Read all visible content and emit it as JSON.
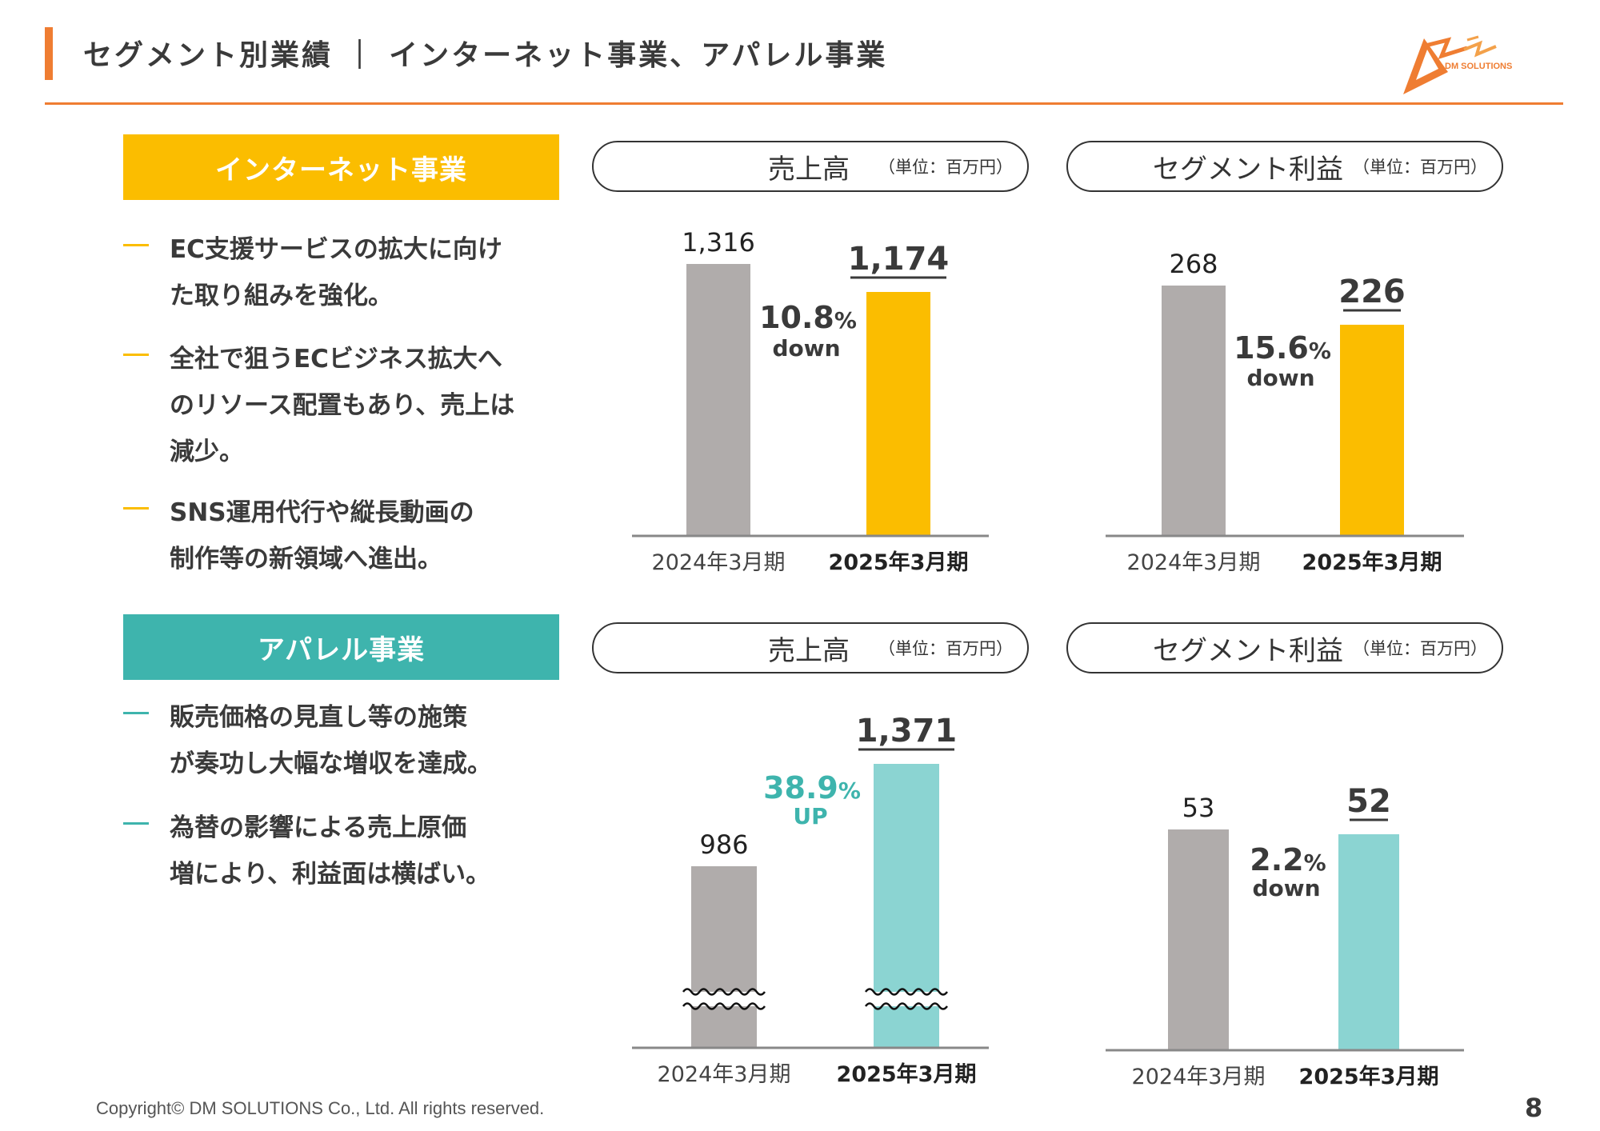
{
  "header": {
    "title": "セグメント別業績 ｜ インターネット事業、アパレル事業",
    "logo_text": "DM SOLUTIONS"
  },
  "segments": {
    "internet": {
      "label": "インターネット事業",
      "bullets": [
        [
          "EC支援サービスの拡大に向け",
          "た取り組みを強化。"
        ],
        [
          "全社で狙うECビジネス拡大へ",
          "のリソース配置もあり、売上は",
          "減少。"
        ],
        [
          "SNS運用代行や縦長動画の",
          "制作等の新領域へ進出。"
        ]
      ]
    },
    "apparel": {
      "label": "アパレル事業",
      "bullets": [
        [
          "販売価格の見直し等の施策",
          "が奏功し大幅な増収を達成。"
        ],
        [
          "為替の影響による売上原価",
          "増により、利益面は横ばい。"
        ]
      ]
    }
  },
  "chart_data": [
    {
      "type": "bar",
      "title": "売上高",
      "unit": "（単位：百万円）",
      "categories": [
        "2024年3月期",
        "2025年3月期"
      ],
      "values": [
        1316,
        1174
      ],
      "value_labels": [
        "1,316",
        "1,174"
      ],
      "change": {
        "value": "10.8",
        "pct": "%",
        "word": "down"
      },
      "colors": [
        "#b0acab",
        "#fbbd00"
      ],
      "segment": "インターネット事業"
    },
    {
      "type": "bar",
      "title": "セグメント利益",
      "unit": "（単位：百万円）",
      "categories": [
        "2024年3月期",
        "2025年3月期"
      ],
      "values": [
        268,
        226
      ],
      "value_labels": [
        "268",
        "226"
      ],
      "change": {
        "value": "15.6",
        "pct": "%",
        "word": "down"
      },
      "colors": [
        "#b0acab",
        "#fbbd00"
      ],
      "segment": "インターネット事業"
    },
    {
      "type": "bar",
      "title": "売上高",
      "unit": "（単位：百万円）",
      "categories": [
        "2024年3月期",
        "2025年3月期"
      ],
      "values": [
        986,
        1371
      ],
      "value_labels": [
        "986",
        "1,371"
      ],
      "change": {
        "value": "38.9",
        "pct": "%",
        "word": "UP"
      },
      "colors": [
        "#b0acab",
        "#8bd4d2"
      ],
      "axis_break": true,
      "segment": "アパレル事業"
    },
    {
      "type": "bar",
      "title": "セグメント利益",
      "unit": "（単位：百万円）",
      "categories": [
        "2024年3月期",
        "2025年3月期"
      ],
      "values": [
        53,
        52
      ],
      "value_labels": [
        "53",
        "52"
      ],
      "change": {
        "value": "2.2",
        "pct": "%",
        "word": "down"
      },
      "colors": [
        "#b0acab",
        "#8bd4d2"
      ],
      "segment": "アパレル事業"
    }
  ],
  "footer": {
    "copyright": "Copyright© DM SOLUTIONS Co., Ltd. All rights reserved.",
    "page": "8"
  }
}
